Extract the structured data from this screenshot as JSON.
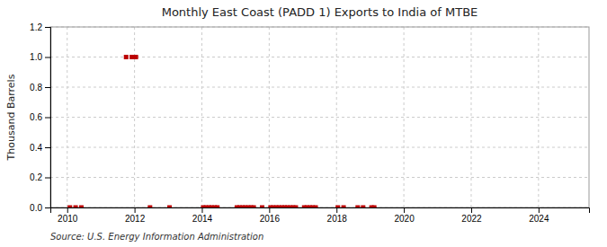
{
  "chart_data": {
    "type": "scatter",
    "title": "Monthly East Coast (PADD 1) Exports to India of MTBE",
    "ylabel": "Thousand Barrels",
    "annotation": "Source: U.S. Energy Information Administration",
    "color": "#bb0000",
    "marker": "square",
    "grid": true,
    "xlim": [
      2009.5,
      2025.5
    ],
    "ylim": [
      0.0,
      1.2
    ],
    "xticks": [
      2010,
      2012,
      2014,
      2016,
      2018,
      2020,
      2022,
      2024
    ],
    "yticks": [
      {
        "value": 0.0,
        "label": "0.0"
      },
      0.2,
      0.4,
      0.6,
      0.8,
      {
        "value": 1.0,
        "label": "1.0"
      },
      1.2
    ],
    "x": [
      2010.08,
      2010.25,
      2010.42,
      2011.75,
      2011.92,
      2012.04,
      2012.46,
      2013.04,
      2014.04,
      2014.12,
      2014.21,
      2014.29,
      2014.38,
      2014.46,
      2015.04,
      2015.12,
      2015.21,
      2015.29,
      2015.38,
      2015.46,
      2015.54,
      2015.79,
      2016.04,
      2016.12,
      2016.21,
      2016.29,
      2016.38,
      2016.46,
      2016.54,
      2016.63,
      2016.71,
      2016.79,
      2017.04,
      2017.12,
      2017.21,
      2017.29,
      2017.38,
      2018.04,
      2018.21,
      2018.63,
      2018.79,
      2019.04,
      2019.12
    ],
    "values": [
      0.0,
      0.0,
      0.0,
      1.0,
      1.0,
      1.0,
      0.0,
      0.0,
      0.0,
      0.0,
      0.0,
      0.0,
      0.0,
      0.0,
      0.0,
      0.0,
      0.0,
      0.0,
      0.0,
      0.0,
      0.0,
      0.0,
      0.0,
      0.0,
      0.0,
      0.0,
      0.0,
      0.0,
      0.0,
      0.0,
      0.0,
      0.0,
      0.0,
      0.0,
      0.0,
      0.0,
      0.0,
      0.0,
      0.0,
      0.0,
      0.0,
      0.0,
      0.0
    ]
  }
}
